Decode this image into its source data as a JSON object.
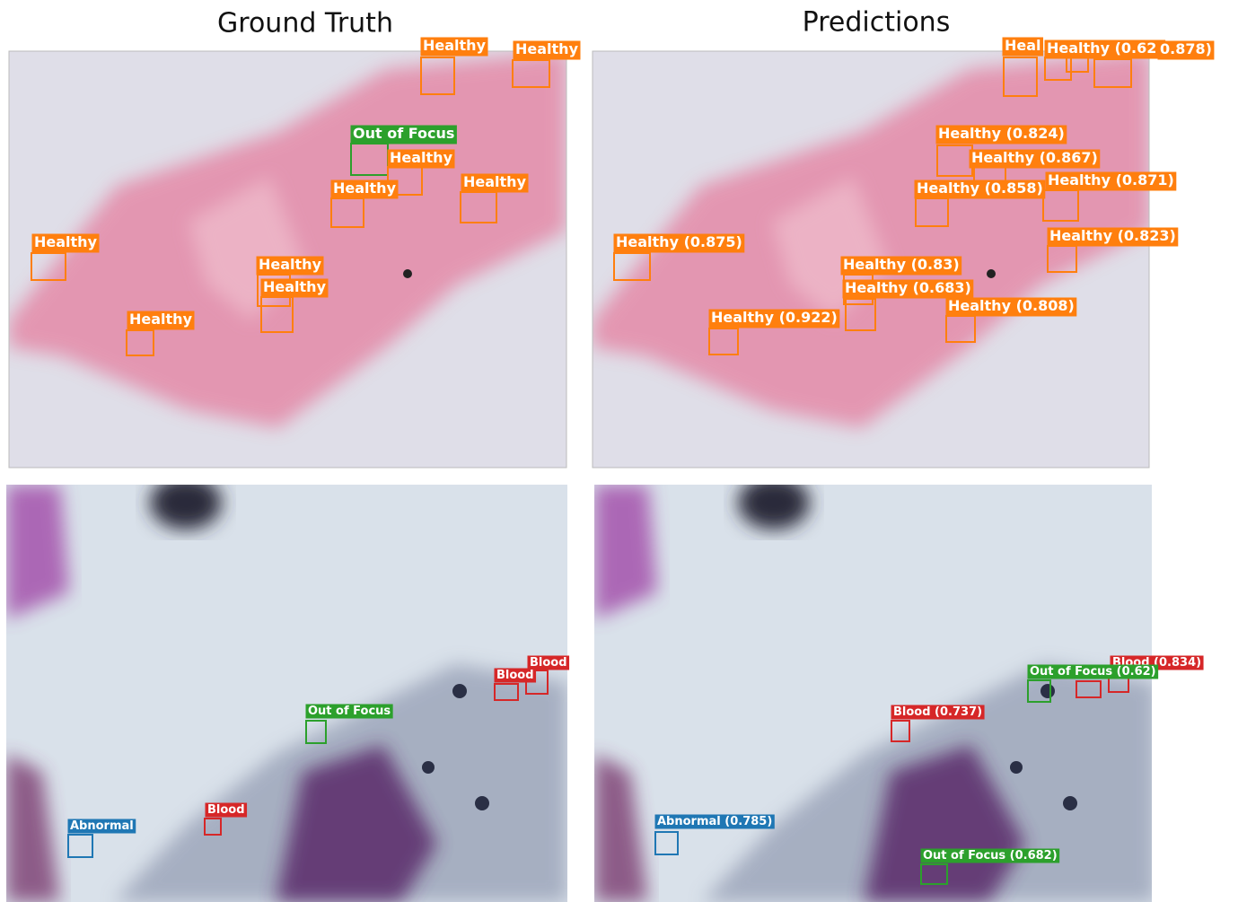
{
  "titles": [
    "Ground Truth",
    "Predictions"
  ],
  "panels": [
    {
      "labels": [
        "Healthy",
        "Healthy",
        "Out of Focus",
        "Healthy",
        "Healthy",
        "Healthy",
        "Healthy",
        "Healthy",
        "Healthy",
        "Healthy"
      ]
    },
    {
      "labels": [
        "Heal",
        "Healthy (0.62)",
        "0.878)",
        "Healthy (0.824)",
        "Healthy (0.867)",
        "Healthy (0.858)",
        "Healthy (0.871)",
        "Healthy (0.875)",
        "Healthy (0.823)",
        "Healthy (0.83)",
        "Healthy (0.683)",
        "Healthy (0.922)",
        "Healthy (0.808)"
      ]
    },
    {
      "labels": [
        "Blood",
        "Blood",
        "Out of Focus",
        "Blood",
        "Abnormal"
      ]
    },
    {
      "labels": [
        "Blood (0.834)",
        "Out of Focus (0.62)",
        "Blood (0.737)",
        "Abnormal (0.785)",
        "Out of Focus (0.682)"
      ]
    }
  ]
}
